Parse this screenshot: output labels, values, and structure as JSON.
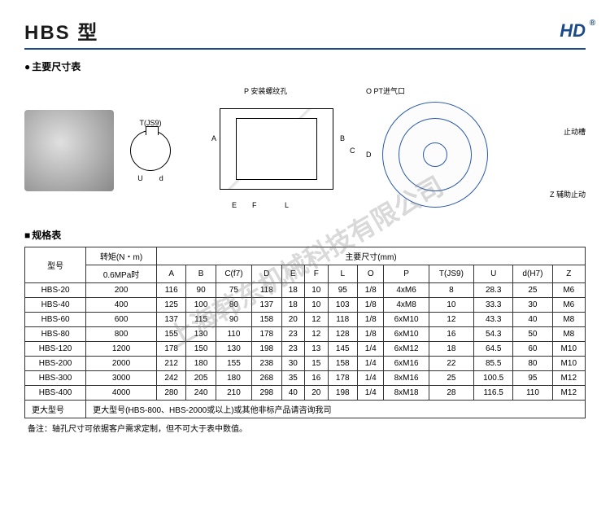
{
  "header": {
    "title": "HBS 型",
    "logo": "HD"
  },
  "section1_title": "主要尺寸表",
  "section2_title": "规格表",
  "diagram_labels": {
    "keyway_top": "T(JS9)",
    "keyway_u": "U",
    "keyway_d": "d",
    "p_label": "P 安装螺纹孔",
    "o_label": "O PT进气口",
    "stop_groove": "止动槽",
    "z_label": "Z 辅助止动",
    "dims": [
      "A",
      "B",
      "C",
      "D",
      "E",
      "F",
      "L"
    ]
  },
  "watermark": "上海韩东机械科技有限公司",
  "table": {
    "headers": {
      "model": "型号",
      "torque": "转矩(N・m)",
      "torque_sub": "0.6MPa时",
      "main_dims": "主要尺寸(mm)",
      "cols": [
        "A",
        "B",
        "C(f7)",
        "D",
        "E",
        "F",
        "L",
        "O",
        "P",
        "T(JS9)",
        "U",
        "d(H7)",
        "Z"
      ]
    },
    "rows": [
      {
        "m": "HBS-20",
        "t": "200",
        "v": [
          "116",
          "90",
          "75",
          "118",
          "18",
          "10",
          "95",
          "1/8",
          "4xM6",
          "8",
          "28.3",
          "25",
          "M6"
        ]
      },
      {
        "m": "HBS-40",
        "t": "400",
        "v": [
          "125",
          "100",
          "80",
          "137",
          "18",
          "10",
          "103",
          "1/8",
          "4xM8",
          "10",
          "33.3",
          "30",
          "M6"
        ]
      },
      {
        "m": "HBS-60",
        "t": "600",
        "v": [
          "137",
          "115",
          "90",
          "158",
          "20",
          "12",
          "118",
          "1/8",
          "6xM10",
          "12",
          "43.3",
          "40",
          "M8"
        ]
      },
      {
        "m": "HBS-80",
        "t": "800",
        "v": [
          "155",
          "130",
          "110",
          "178",
          "23",
          "12",
          "128",
          "1/8",
          "6xM10",
          "16",
          "54.3",
          "50",
          "M8"
        ]
      },
      {
        "m": "HBS-120",
        "t": "1200",
        "v": [
          "178",
          "150",
          "130",
          "198",
          "23",
          "13",
          "145",
          "1/4",
          "6xM12",
          "18",
          "64.5",
          "60",
          "M10"
        ]
      },
      {
        "m": "HBS-200",
        "t": "2000",
        "v": [
          "212",
          "180",
          "155",
          "238",
          "30",
          "15",
          "158",
          "1/4",
          "6xM16",
          "22",
          "85.5",
          "80",
          "M10"
        ]
      },
      {
        "m": "HBS-300",
        "t": "3000",
        "v": [
          "242",
          "205",
          "180",
          "268",
          "35",
          "16",
          "178",
          "1/4",
          "8xM16",
          "25",
          "100.5",
          "95",
          "M12"
        ]
      },
      {
        "m": "HBS-400",
        "t": "4000",
        "v": [
          "280",
          "240",
          "210",
          "298",
          "40",
          "20",
          "198",
          "1/4",
          "8xM18",
          "28",
          "116.5",
          "110",
          "M12"
        ]
      }
    ],
    "footer_label": "更大型号",
    "footer_text": "更大型号(HBS-800、HBS-2000或以上)或其他非标产品请咨询我司"
  },
  "note": "备注：轴孔尺寸可依据客户需求定制，但不可大于表中数值。"
}
